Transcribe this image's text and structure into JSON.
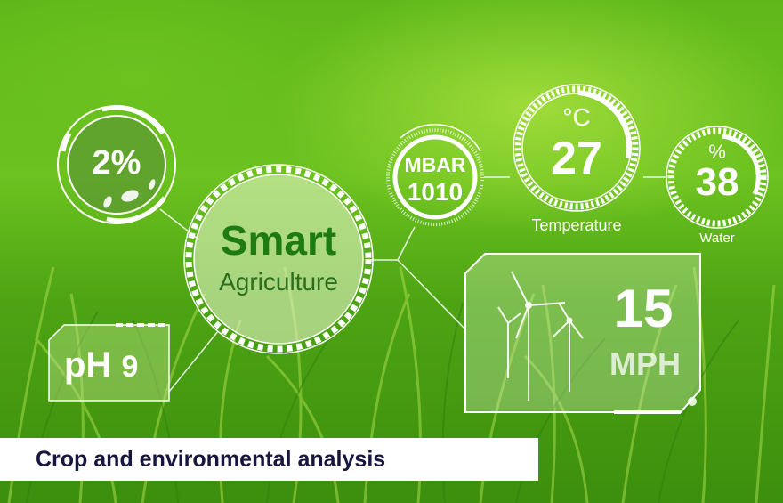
{
  "pest_gauge": {
    "value": "2%",
    "icon": "insects-icon"
  },
  "center_badge": {
    "title": "Smart",
    "subtitle": "Agriculture"
  },
  "ph_panel": {
    "label": "pH",
    "value": "9"
  },
  "pressure_gauge": {
    "unit": "MBAR",
    "value": "1010"
  },
  "temperature_gauge": {
    "unit": "°C",
    "value": "27",
    "label": "Temperature"
  },
  "water_gauge": {
    "unit": "%",
    "value": "38",
    "label": "Water"
  },
  "wind_panel": {
    "value": "15",
    "unit": "MPH",
    "icon": "wind-turbine-icon"
  },
  "banner": {
    "text": "Crop and environmental analysis"
  },
  "colors": {
    "accent_green": "#1e7a12",
    "banner_text": "#16163f",
    "overlay": "#ffffff"
  }
}
